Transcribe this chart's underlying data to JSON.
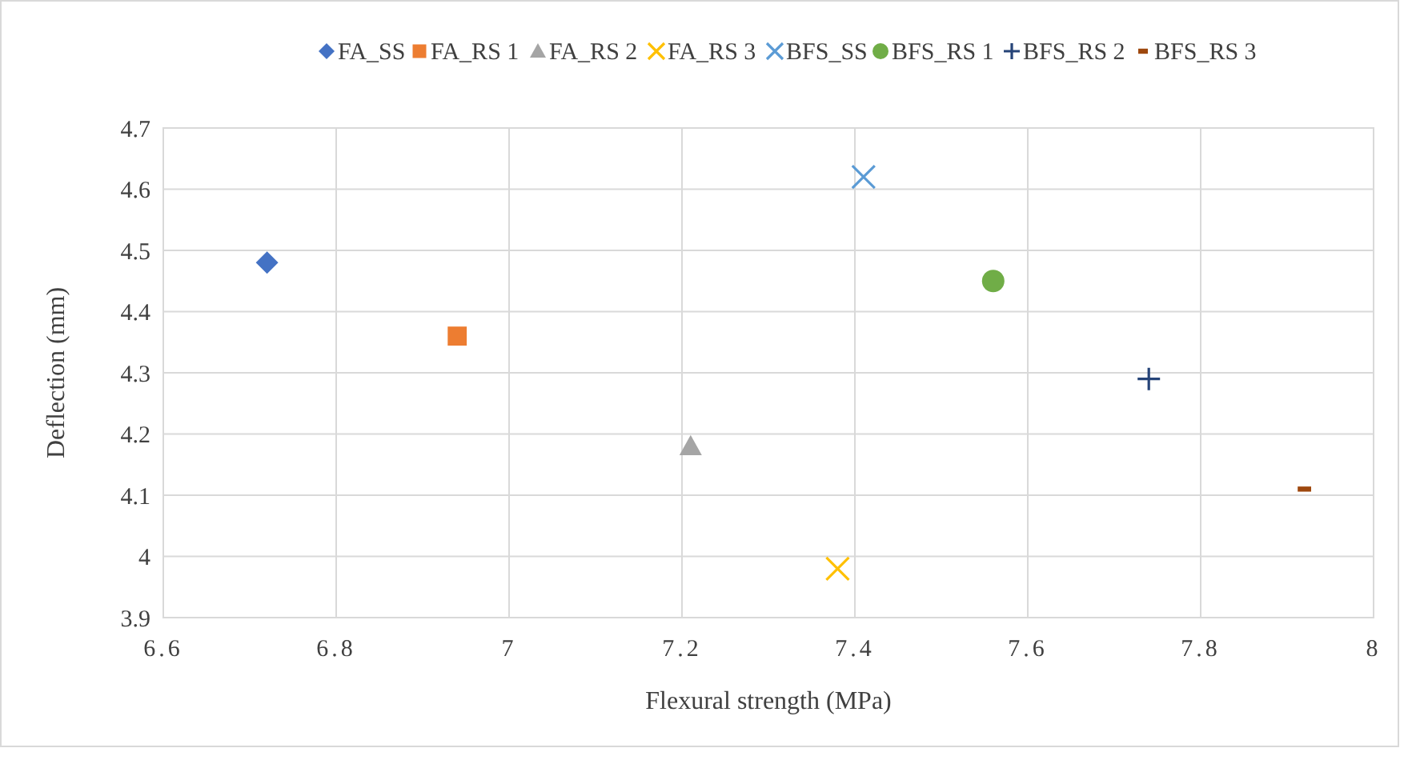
{
  "chart_data": {
    "type": "scatter",
    "xlabel": "Flexural strength (MPa)",
    "ylabel": "Deflection (mm)",
    "xlim": [
      6.6,
      8
    ],
    "xticks": [
      6.6,
      6.8,
      7,
      7.2,
      7.4,
      7.6,
      7.8,
      8
    ],
    "ylim": [
      3.9,
      4.7
    ],
    "yticks": [
      3.9,
      {
        "value": 4,
        "label": "4"
      },
      4.1,
      4.2,
      4.3,
      4.4,
      4.5,
      4.6,
      4.7
    ],
    "grid": true,
    "legend": "top",
    "series": [
      {
        "name": "FA_SS",
        "color": "#4472c4",
        "marker": "diamond",
        "x": [
          6.72
        ],
        "values": [
          4.48
        ]
      },
      {
        "name": "FA_RS 1",
        "color": "#ed7d31",
        "marker": "square",
        "x": [
          6.94
        ],
        "values": [
          4.36
        ]
      },
      {
        "name": "FA_RS 2",
        "color": "#a5a5a5",
        "marker": "triangle",
        "x": [
          7.21
        ],
        "values": [
          4.18
        ]
      },
      {
        "name": "FA_RS 3",
        "color": "#ffc000",
        "marker": "cross",
        "x": [
          7.38
        ],
        "values": [
          3.98
        ]
      },
      {
        "name": "BFS_SS",
        "color": "#5b9bd5",
        "marker": "cross",
        "x": [
          7.41
        ],
        "values": [
          4.62
        ]
      },
      {
        "name": "BFS_RS 1",
        "color": "#70ad47",
        "marker": "circle",
        "x": [
          7.56
        ],
        "values": [
          4.45
        ]
      },
      {
        "name": "BFS_RS 2",
        "color": "#264478",
        "marker": "plus",
        "x": [
          7.74
        ],
        "values": [
          4.29
        ]
      },
      {
        "name": "BFS_RS 3",
        "color": "#9e480e",
        "x": [
          7.92
        ],
        "values": [
          4.11
        ]
      }
    ]
  }
}
